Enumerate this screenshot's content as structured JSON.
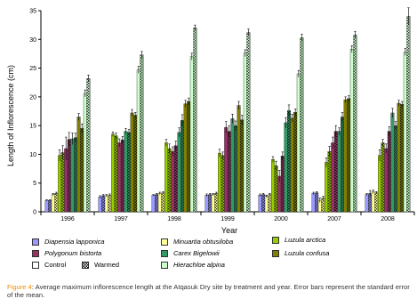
{
  "chart_data": {
    "type": "bar",
    "xlabel": "Year",
    "ylabel": "Length of Inflorescence (cm)",
    "ylim": [
      0,
      35
    ],
    "yticks": [
      0,
      5,
      10,
      15,
      20,
      25,
      30,
      35
    ],
    "categories": [
      "1996",
      "1997",
      "1998",
      "1999",
      "2000",
      "2007",
      "2008"
    ],
    "series": [
      {
        "name": "Diapensia lapponica Control",
        "color": "#9999ff",
        "pattern": "solid",
        "values": [
          2.0,
          2.6,
          2.9,
          2.9,
          2.9,
          3.2,
          3.0
        ],
        "errors": [
          0.1,
          0.2,
          0.1,
          0.2,
          0.2,
          0.2,
          0.2
        ]
      },
      {
        "name": "Diapensia lapponica Warmed",
        "color": "#9999ff",
        "pattern": "check",
        "values": [
          2.0,
          2.8,
          3.0,
          3.0,
          3.0,
          3.3,
          3.2
        ],
        "errors": [
          0.1,
          0.2,
          0.2,
          0.2,
          0.2,
          0.2,
          0.5
        ]
      },
      {
        "name": "Minuartia obtusiloba Control",
        "color": "#ffff99",
        "pattern": "solid",
        "values": [
          3.0,
          2.8,
          3.2,
          3.0,
          2.7,
          2.0,
          3.5
        ],
        "errors": [
          0.2,
          0.2,
          0.2,
          0.2,
          0.2,
          0.4,
          0.3
        ]
      },
      {
        "name": "Minuartia obtusiloba Warmed",
        "color": "#ffff99",
        "pattern": "check",
        "values": [
          3.2,
          2.9,
          3.3,
          3.2,
          3.0,
          2.4,
          3.3
        ],
        "errors": [
          0.2,
          0.2,
          0.2,
          0.2,
          0.2,
          0.3,
          0.2
        ]
      },
      {
        "name": "Luzula arctica Control",
        "color": "#99cc00",
        "pattern": "solid",
        "values": [
          9.8,
          13.5,
          12.0,
          10.2,
          9.1,
          8.6,
          9.8
        ],
        "errors": [
          1.0,
          0.4,
          0.6,
          0.7,
          0.5,
          0.8,
          1.0
        ]
      },
      {
        "name": "Luzula arctica Warmed",
        "color": "#99cc00",
        "pattern": "check",
        "values": [
          10.3,
          13.2,
          11.0,
          9.8,
          8.0,
          10.5,
          12.0
        ],
        "errors": [
          1.2,
          0.5,
          0.8,
          0.6,
          0.8,
          0.9,
          0.6
        ]
      },
      {
        "name": "Polygonum bistorta Control",
        "color": "#993366",
        "pattern": "solid",
        "values": [
          11.0,
          12.0,
          10.5,
          14.7,
          6.2,
          12.0,
          11.0
        ],
        "errors": [
          2.0,
          0.7,
          0.8,
          1.0,
          1.0,
          1.0,
          0.8
        ]
      },
      {
        "name": "Polygonum bistorta Warmed",
        "color": "#993366",
        "pattern": "check",
        "values": [
          12.6,
          12.5,
          11.5,
          14.0,
          9.7,
          14.0,
          14.0
        ],
        "errors": [
          1.2,
          0.6,
          0.8,
          1.0,
          0.7,
          1.0,
          0.8
        ]
      },
      {
        "name": "Carex Bigelowii Control",
        "color": "#339966",
        "pattern": "solid",
        "values": [
          12.7,
          14.0,
          13.8,
          16.2,
          15.5,
          14.0,
          17.2
        ],
        "errors": [
          1.0,
          0.5,
          0.8,
          0.8,
          0.9,
          0.6,
          0.8
        ]
      },
      {
        "name": "Carex Bigelowii Warmed",
        "color": "#339966",
        "pattern": "check",
        "values": [
          12.9,
          13.8,
          15.9,
          15.0,
          17.6,
          16.5,
          15.0
        ],
        "errors": [
          0.8,
          0.5,
          1.0,
          0.8,
          1.0,
          0.8,
          0.7
        ]
      },
      {
        "name": "Luzula confusa Control",
        "color": "#808000",
        "pattern": "solid",
        "values": [
          16.5,
          17.2,
          18.8,
          18.5,
          16.3,
          19.5,
          18.9
        ],
        "errors": [
          0.6,
          0.6,
          0.6,
          0.7,
          0.7,
          0.5,
          0.5
        ]
      },
      {
        "name": "Luzula confusa Warmed",
        "color": "#808000",
        "pattern": "check",
        "values": [
          14.5,
          16.8,
          19.2,
          16.0,
          17.3,
          19.7,
          18.7
        ],
        "errors": [
          0.8,
          0.5,
          0.6,
          0.8,
          0.6,
          0.5,
          0.5
        ]
      },
      {
        "name": "Hierachloe alpina Control",
        "color": "#ccffcc",
        "pattern": "solid",
        "values": [
          20.6,
          24.7,
          27.0,
          27.6,
          24.0,
          28.3,
          27.8
        ],
        "errors": [
          0.6,
          0.6,
          0.6,
          0.6,
          0.6,
          0.6,
          0.6
        ]
      },
      {
        "name": "Hierachloe alpina Warmed",
        "color": "#ccffcc",
        "pattern": "check",
        "values": [
          23.2,
          27.3,
          32.0,
          31.2,
          30.3,
          30.8,
          34.0
        ],
        "errors": [
          0.6,
          0.6,
          0.5,
          0.6,
          0.6,
          0.6,
          1.5
        ]
      }
    ],
    "grid": false,
    "legend_placement": "bottom"
  },
  "legend": {
    "species": [
      {
        "label": "Diapensia lapponica",
        "color": "#9999ff"
      },
      {
        "label": "Minuartia obtusiloba",
        "color": "#ffff99"
      },
      {
        "label": "Luzula arctica",
        "color": "#99cc00"
      },
      {
        "label": "Polygonum bistorta",
        "color": "#993366"
      },
      {
        "label": "Carex Bigelowii",
        "color": "#339966"
      },
      {
        "label": "Luzula confusa",
        "color": "#808000"
      },
      {
        "label": "Hierachloe alpina",
        "color": "#ccffcc"
      }
    ],
    "control_label": "Control",
    "warmed_label": "Warmed"
  },
  "caption": {
    "figure_label": "Figure 4",
    "text": ": Average maximum inflorescence length at the Atqasuk Dry site by treatment and year. Error bars represent the standard error of the mean."
  }
}
